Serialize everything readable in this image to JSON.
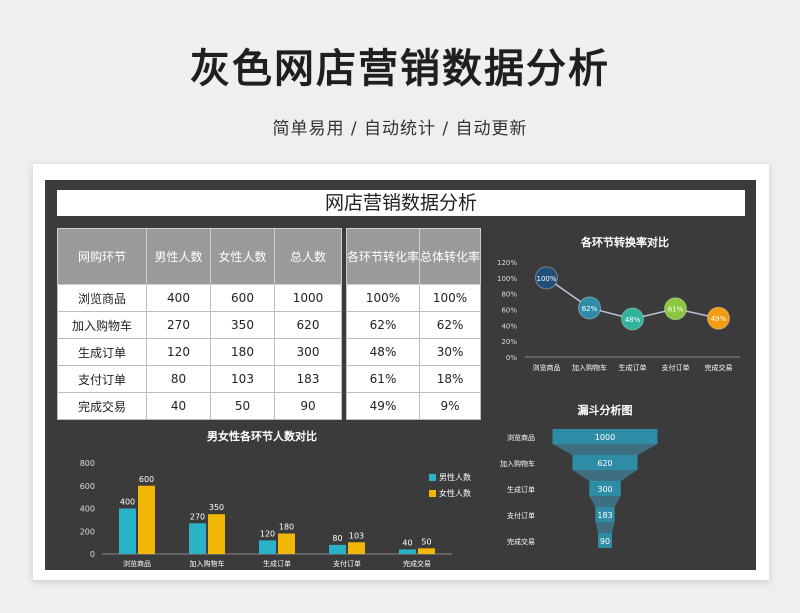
{
  "page": {
    "title": "灰色网店营销数据分析",
    "subtitle": "简单易用 / 自动统计 / 自动更新"
  },
  "sheet": {
    "title": "网店营销数据分析",
    "table": {
      "headers": [
        "网购环节",
        "男性人数",
        "女性人数",
        "总人数",
        "各环节转化率",
        "总体转化率"
      ],
      "rows": [
        [
          "浏览商品",
          "400",
          "600",
          "1000",
          "100%",
          "100%"
        ],
        [
          "加入购物车",
          "270",
          "350",
          "620",
          "62%",
          "62%"
        ],
        [
          "生成订单",
          "120",
          "180",
          "300",
          "48%",
          "30%"
        ],
        [
          "支付订单",
          "80",
          "103",
          "183",
          "61%",
          "18%"
        ],
        [
          "完成交易",
          "40",
          "50",
          "90",
          "49%",
          "9%"
        ]
      ]
    }
  },
  "colors": {
    "background": "#efefef",
    "sheet_bg": "#3b3b3b",
    "male": "#2ab3c8",
    "female": "#f2b705",
    "funnel": "#2e8ca6",
    "line_points": [
      "#1f4e79",
      "#2e8ca6",
      "#2fb39a",
      "#8dc63f",
      "#f39c12"
    ]
  },
  "chart_data": [
    {
      "type": "line",
      "title": "各环节转换率对比",
      "categories": [
        "浏览商品",
        "加入购物车",
        "生成订单",
        "支付订单",
        "完成交易"
      ],
      "values": [
        100,
        62,
        48,
        61,
        49
      ],
      "labels": [
        "100%",
        "62%",
        "48%",
        "61%",
        "49%"
      ],
      "ylim": [
        0,
        120
      ],
      "yticks": [
        "0%",
        "20%",
        "40%",
        "60%",
        "80%",
        "100%",
        "120%"
      ]
    },
    {
      "type": "bar",
      "title": "男女性各环节人数对比",
      "categories": [
        "浏览商品",
        "加入购物车",
        "生成订单",
        "支付订单",
        "完成交易"
      ],
      "series": [
        {
          "name": "男性人数",
          "values": [
            400,
            270,
            120,
            80,
            40
          ]
        },
        {
          "name": "女性人数",
          "values": [
            600,
            350,
            180,
            103,
            50
          ]
        }
      ],
      "ylim": [
        0,
        800
      ],
      "yticks": [
        "0",
        "200",
        "400",
        "600",
        "800"
      ],
      "legend": "right"
    },
    {
      "type": "bar",
      "title": "漏斗分析图",
      "categories": [
        "浏览商品",
        "加入购物车",
        "生成订单",
        "支付订单",
        "完成交易"
      ],
      "values": [
        1000,
        620,
        300,
        183,
        90
      ]
    }
  ]
}
